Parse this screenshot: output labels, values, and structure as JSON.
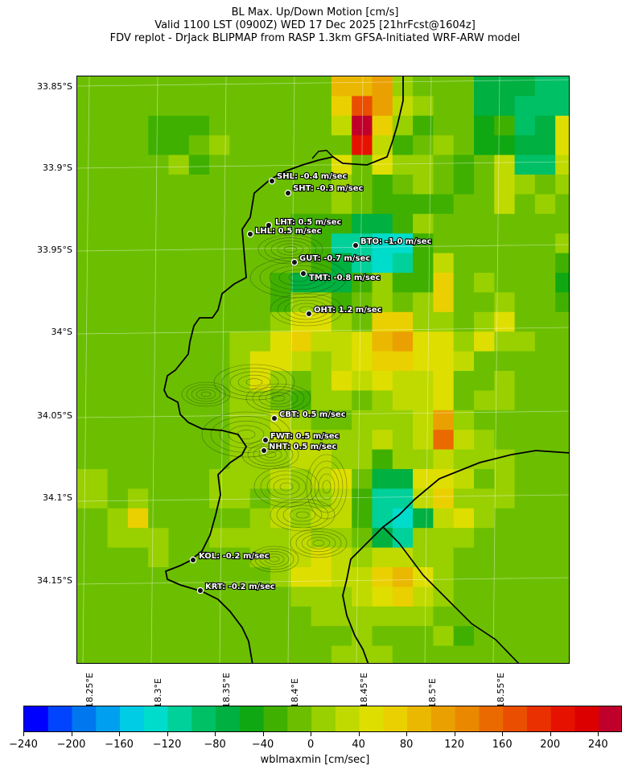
{
  "title": {
    "line1": "BL Max. Up/Down Motion [cm/s]",
    "line2": "Valid 1100 LST (0900Z) WED 17 Dec 2025 [21hrFcst@1604z]",
    "line3": "FDV replot - DrJack BLIPMAP from RASP 1.3km GFSA-Initiated WRF-ARW model"
  },
  "lat_labels": [
    "33.85°S",
    "33.9°S",
    "33.95°S",
    "34°S",
    "34.05°S",
    "34.1°S",
    "34.15°S"
  ],
  "lon_labels": [
    "18.25°E",
    "18.3°E",
    "18.35°E",
    "18.4°E",
    "18.45°E",
    "18.5°E",
    "18.55°E"
  ],
  "stations": [
    {
      "code": "SHL",
      "label": "SHL: -0.4 m/sec",
      "value": -0.4
    },
    {
      "code": "SHT",
      "label": "SHT: -0.3 m/sec",
      "value": -0.3
    },
    {
      "code": "LHT",
      "label": "LHT: 0.5 m/sec",
      "value": 0.5
    },
    {
      "code": "LHL",
      "label": "LHL: 0.5 m/sec",
      "value": 0.5
    },
    {
      "code": "BTO",
      "label": "BTO: -1.0 m/sec",
      "value": -1.0
    },
    {
      "code": "GUT",
      "label": "GUT: -0.7 m/sec",
      "value": -0.7
    },
    {
      "code": "TMT",
      "label": "TMT: -0.8 m/sec",
      "value": -0.8
    },
    {
      "code": "OHT",
      "label": "OHT: 1.2 m/sec",
      "value": 1.2
    },
    {
      "code": "CBT",
      "label": "CBT: 0.5 m/sec",
      "value": 0.5
    },
    {
      "code": "FWT",
      "label": "FWT: 0.5 m/sec",
      "value": 0.5
    },
    {
      "code": "NHT",
      "label": "NHT: 0.5 m/sec",
      "value": 0.5
    },
    {
      "code": "KOL",
      "label": "KOL: -0.2 m/sec",
      "value": -0.2
    },
    {
      "code": "KRT",
      "label": "KRT: -0.2 m/sec",
      "value": -0.2
    }
  ],
  "colorbar": {
    "label": "wblmaxmin [cm/sec]",
    "ticks": [
      "−240",
      "−200",
      "−160",
      "−120",
      "−80",
      "−40",
      "0",
      "40",
      "80",
      "120",
      "160",
      "200",
      "240"
    ],
    "min": -240,
    "max": 260,
    "step": 20,
    "colors": [
      "#0000ff",
      "#0044ff",
      "#0077ee",
      "#00a0ee",
      "#00cce6",
      "#00dccc",
      "#00d09a",
      "#00c066",
      "#00b040",
      "#10a812",
      "#40b000",
      "#6cbf00",
      "#98d000",
      "#c0da00",
      "#dede00",
      "#ead000",
      "#eab800",
      "#eaa000",
      "#ea8800",
      "#ea6a00",
      "#ea4e00",
      "#ea3000",
      "#e61200",
      "#dc0000",
      "#c0002a"
    ]
  }
}
